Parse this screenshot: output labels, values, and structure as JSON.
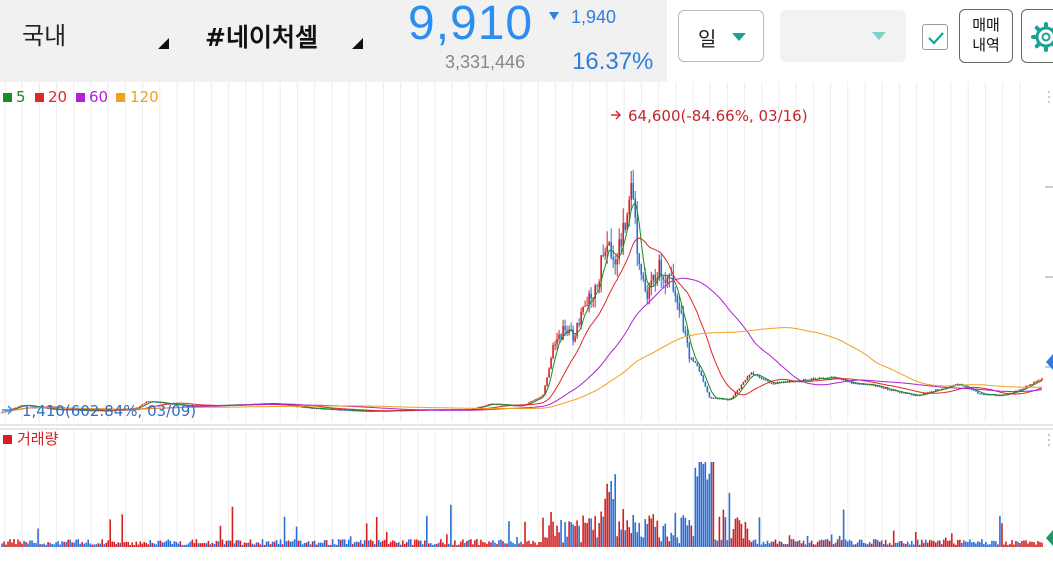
{
  "header": {
    "market": "국내",
    "stock_name": "#네이처셀",
    "price": "9,910",
    "change": "1,940",
    "volume": "3,331,446",
    "change_pct": "16.37%",
    "period": "일",
    "trade_history_line1": "매매",
    "trade_history_line2": "내역"
  },
  "colors": {
    "price_down": "#2b8ef0",
    "ma5": "#1a8a2a",
    "ma20": "#e0262a",
    "ma60": "#b020d8",
    "ma120": "#f0a020",
    "candle_up": "#d42020",
    "candle_down": "#2b6fd6"
  },
  "icons": {
    "market_dropdown": "caret-corner-icon",
    "name_dropdown": "caret-corner-icon",
    "price_change": "triangle-down-icon",
    "period_dropdown": "chevron-down-icon",
    "checkbox": "check-icon",
    "settings": "gear-icon"
  },
  "chart_data": {
    "type": "candlestick",
    "legend": [
      {
        "label": "5",
        "color": "#1a8a2a"
      },
      {
        "label": "20",
        "color": "#e0262a"
      },
      {
        "label": "60",
        "color": "#b020d8"
      },
      {
        "label": "120",
        "color": "#f0a020"
      }
    ],
    "high_annotation": "64,600(-84.66%, 03/16)",
    "low_annotation": "1,410(602.84%, 03/09)",
    "high_value": 64600,
    "low_value": 1410,
    "last_close": 9910,
    "volume_label": "거래량",
    "price_points": [
      [
        0,
        1410
      ],
      [
        0.02,
        3200
      ],
      [
        0.05,
        2200
      ],
      [
        0.1,
        1800
      ],
      [
        0.13,
        2500
      ],
      [
        0.14,
        4200
      ],
      [
        0.18,
        3000
      ],
      [
        0.22,
        3200
      ],
      [
        0.26,
        3600
      ],
      [
        0.3,
        2400
      ],
      [
        0.35,
        1700
      ],
      [
        0.4,
        2000
      ],
      [
        0.45,
        2100
      ],
      [
        0.47,
        3500
      ],
      [
        0.5,
        3000
      ],
      [
        0.52,
        5500
      ],
      [
        0.53,
        17000
      ],
      [
        0.54,
        22000
      ],
      [
        0.55,
        20000
      ],
      [
        0.56,
        27000
      ],
      [
        0.57,
        31000
      ],
      [
        0.58,
        42000
      ],
      [
        0.59,
        40000
      ],
      [
        0.6,
        47000
      ],
      [
        0.605,
        61000
      ],
      [
        0.61,
        44000
      ],
      [
        0.62,
        29000
      ],
      [
        0.63,
        37000
      ],
      [
        0.64,
        35000
      ],
      [
        0.65,
        30000
      ],
      [
        0.66,
        16000
      ],
      [
        0.67,
        12000
      ],
      [
        0.68,
        5000
      ],
      [
        0.7,
        4500
      ],
      [
        0.72,
        11000
      ],
      [
        0.74,
        8500
      ],
      [
        0.76,
        9000
      ],
      [
        0.78,
        9500
      ],
      [
        0.8,
        10000
      ],
      [
        0.82,
        8500
      ],
      [
        0.84,
        8000
      ],
      [
        0.86,
        6500
      ],
      [
        0.88,
        5500
      ],
      [
        0.9,
        7000
      ],
      [
        0.92,
        8500
      ],
      [
        0.94,
        6000
      ],
      [
        0.96,
        5500
      ],
      [
        0.98,
        7000
      ],
      [
        1.0,
        9910
      ]
    ]
  }
}
